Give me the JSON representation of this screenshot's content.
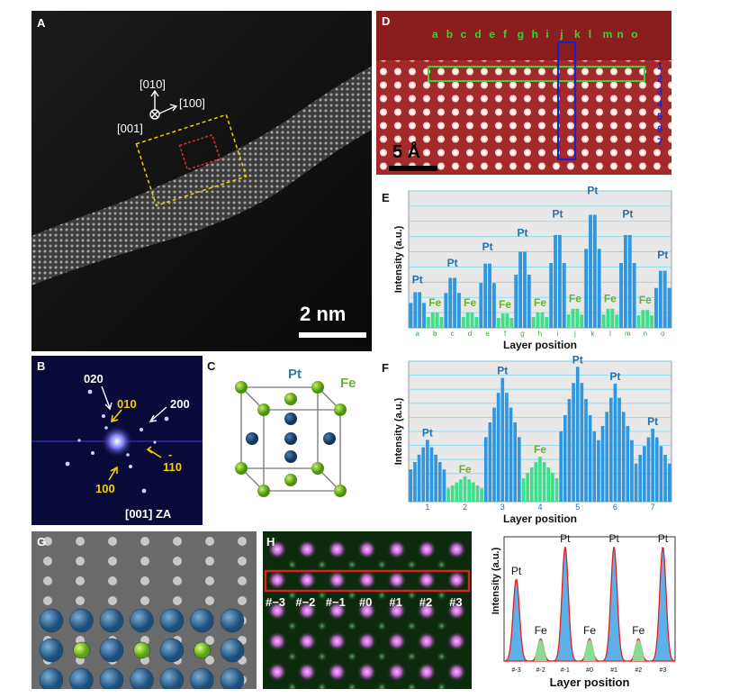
{
  "panels": {
    "A": {
      "label": "A",
      "dir_010": "[010]",
      "dir_100": "[100]",
      "dir_001": "[001]",
      "scalebar": "2 nm"
    },
    "B": {
      "label": "B",
      "spots": [
        "020",
        "010",
        "200",
        "100",
        "110"
      ],
      "spot_110_bar": "-",
      "za": "[001] ZA"
    },
    "C": {
      "label": "C",
      "pt": "Pt",
      "fe": "Fe"
    },
    "D": {
      "label": "D",
      "columns": [
        "a",
        "b",
        "c",
        "d",
        "e",
        "f",
        "g",
        "h",
        "i",
        "j",
        "k",
        "l",
        "m",
        "n",
        "o"
      ],
      "rows": [
        "1",
        "2",
        "3",
        "4",
        "5",
        "6",
        "7"
      ],
      "scalebar": "5 Å"
    },
    "E": {
      "label": "E",
      "ylabel": "Intensity (a.u.)",
      "xlabel": "Layer position",
      "ticks": [
        "a",
        "b",
        "c",
        "d",
        "e",
        "f",
        "g",
        "h",
        "i",
        "j",
        "k",
        "l",
        "m",
        "n",
        "o"
      ],
      "peak_labels": [
        "Pt",
        "Fe",
        "Pt",
        "Fe",
        "Pt",
        "Fe",
        "Pt",
        "Fe",
        "Pt",
        "Fe",
        "Pt",
        "Fe",
        "Pt",
        "Fe",
        "Pt"
      ]
    },
    "F": {
      "label": "F",
      "ylabel": "Intensity (a.u.)",
      "xlabel": "Layer position",
      "ticks": [
        "1",
        "2",
        "3",
        "4",
        "5",
        "6",
        "7"
      ],
      "peak_labels": [
        "Pt",
        "Fe",
        "Pt",
        "Fe",
        "Pt",
        "Pt",
        "Pt"
      ]
    },
    "G": {
      "label": "G"
    },
    "H": {
      "label": "H",
      "sites": [
        "#−3",
        "#−2",
        "#−1",
        "#0",
        "#1",
        "#2",
        "#3"
      ],
      "ylabel": "Intensity (a.u.)",
      "xlabel": "Layer position",
      "ticks": [
        "#-3",
        "#-2",
        "#-1",
        "#0",
        "#1",
        "#2",
        "#3"
      ],
      "peak_labels": [
        "Pt",
        "Fe",
        "Pt",
        "Fe",
        "Pt",
        "Fe",
        "Pt"
      ]
    }
  },
  "chart_data": [
    {
      "type": "bar",
      "panel": "E",
      "categories": [
        "a",
        "b",
        "c",
        "d",
        "e",
        "f",
        "g",
        "h",
        "i",
        "j",
        "k",
        "l",
        "m",
        "n",
        "o"
      ],
      "series": [
        {
          "values": [
            0.3,
            0.13,
            0.42,
            0.13,
            0.54,
            0.12,
            0.64,
            0.13,
            0.78,
            0.16,
            0.95,
            0.16,
            0.78,
            0.15,
            0.48
          ]
        }
      ],
      "xlabel": "Layer position",
      "ylabel": "Intensity (a.u.)",
      "ylim": [
        0,
        1
      ]
    },
    {
      "type": "bar",
      "panel": "F",
      "categories": [
        "1",
        "2",
        "3",
        "4",
        "5",
        "6",
        "7"
      ],
      "series": [
        {
          "values": [
            0.44,
            0.18,
            0.88,
            0.32,
            0.96,
            0.84,
            0.52
          ]
        }
      ],
      "xlabel": "Layer position",
      "ylabel": "Intensity (a.u.)",
      "ylim": [
        0,
        1
      ]
    },
    {
      "type": "area",
      "panel": "H",
      "categories": [
        "#-3",
        "#-2",
        "#-1",
        "#0",
        "#1",
        "#2",
        "#3"
      ],
      "series": [
        {
          "values": [
            0.66,
            0.18,
            0.92,
            0.18,
            0.92,
            0.18,
            0.92
          ]
        }
      ],
      "xlabel": "Layer position",
      "ylabel": "Intensity (a.u.)",
      "ylim": [
        0,
        1
      ]
    }
  ]
}
